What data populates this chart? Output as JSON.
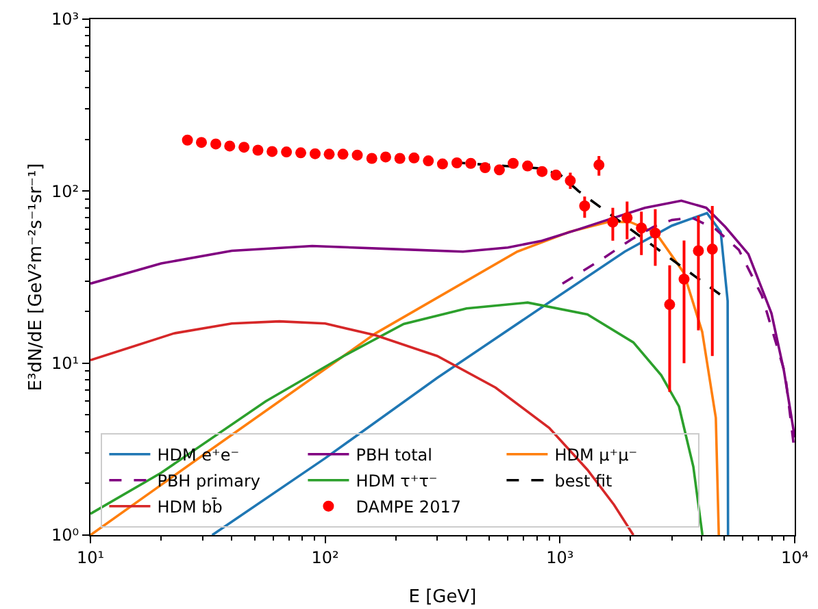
{
  "chart_data": {
    "type": "line",
    "xlabel": "E [GeV]",
    "ylabel": "E³dN/dE [GeV²m⁻²s⁻¹sr⁻¹]",
    "log": "xy",
    "legend": "bottom left",
    "grid": false,
    "xlim": [
      10,
      10000
    ],
    "ylim": [
      1,
      1000
    ],
    "xticks": [
      {
        "value": 10,
        "label": "10¹"
      },
      {
        "value": 20,
        "label": null
      },
      {
        "value": 30,
        "label": null
      },
      {
        "value": 40,
        "label": null
      },
      {
        "value": 50,
        "label": null
      },
      {
        "value": 60,
        "label": null
      },
      {
        "value": 70,
        "label": null
      },
      {
        "value": 80,
        "label": null
      },
      {
        "value": 90,
        "label": null
      },
      {
        "value": 100,
        "label": "10²"
      },
      {
        "value": 200,
        "label": null
      },
      {
        "value": 300,
        "label": null
      },
      {
        "value": 400,
        "label": null
      },
      {
        "value": 500,
        "label": null
      },
      {
        "value": 600,
        "label": null
      },
      {
        "value": 700,
        "label": null
      },
      {
        "value": 800,
        "label": null
      },
      {
        "value": 900,
        "label": null
      },
      {
        "value": 1000,
        "label": "10³"
      },
      {
        "value": 2000,
        "label": null
      },
      {
        "value": 3000,
        "label": null
      },
      {
        "value": 4000,
        "label": null
      },
      {
        "value": 5000,
        "label": null
      },
      {
        "value": 6000,
        "label": null
      },
      {
        "value": 7000,
        "label": null
      },
      {
        "value": 8000,
        "label": null
      },
      {
        "value": 9000,
        "label": null
      },
      {
        "value": 10000,
        "label": "10⁴"
      }
    ],
    "yticks": [
      {
        "value": 1,
        "label": "10⁰"
      },
      {
        "value": 2,
        "label": null
      },
      {
        "value": 3,
        "label": null
      },
      {
        "value": 4,
        "label": null
      },
      {
        "value": 5,
        "label": null
      },
      {
        "value": 6,
        "label": null
      },
      {
        "value": 7,
        "label": null
      },
      {
        "value": 8,
        "label": null
      },
      {
        "value": 9,
        "label": null
      },
      {
        "value": 10,
        "label": "10¹"
      },
      {
        "value": 20,
        "label": null
      },
      {
        "value": 30,
        "label": null
      },
      {
        "value": 40,
        "label": null
      },
      {
        "value": 50,
        "label": null
      },
      {
        "value": 60,
        "label": null
      },
      {
        "value": 70,
        "label": null
      },
      {
        "value": 80,
        "label": null
      },
      {
        "value": 90,
        "label": null
      },
      {
        "value": 100,
        "label": "10²"
      },
      {
        "value": 200,
        "label": null
      },
      {
        "value": 300,
        "label": null
      },
      {
        "value": 400,
        "label": null
      },
      {
        "value": 500,
        "label": null
      },
      {
        "value": 600,
        "label": null
      },
      {
        "value": 700,
        "label": null
      },
      {
        "value": 800,
        "label": null
      },
      {
        "value": 900,
        "label": null
      },
      {
        "value": 1000,
        "label": "10³"
      }
    ],
    "series": [
      {
        "name": "HDM e⁺e⁻",
        "line_style": "solid",
        "marker": "none",
        "color": "#1f77b4",
        "x": [
          33,
          100,
          300,
          914,
          1888,
          3000,
          4230,
          4840,
          5180,
          5200
        ],
        "values": [
          1,
          2.8,
          8.2,
          22.9,
          44.5,
          63,
          74.5,
          58,
          23,
          1
        ]
      },
      {
        "name": "HDM μ⁺μ⁻",
        "line_style": "solid",
        "marker": "none",
        "color": "#ff7f0e",
        "x": [
          10,
          30,
          164,
          658,
          1100,
          1630,
          2000,
          2566,
          3366,
          4036,
          4613,
          4750
        ],
        "values": [
          1,
          2.9,
          14.9,
          44.5,
          58,
          66.5,
          66,
          57,
          33.6,
          15.2,
          4.8,
          1
        ]
      },
      {
        "name": "HDM τ⁺τ⁻",
        "line_style": "solid",
        "marker": "none",
        "color": "#2ca02c",
        "x": [
          10,
          20,
          55.8,
          120,
          216,
          400,
          728,
          1309,
          2055,
          2700,
          3214,
          3700,
          4045
        ],
        "values": [
          1.33,
          2.3,
          6,
          11,
          16.9,
          20.8,
          22.5,
          19.2,
          13.2,
          8.5,
          5.6,
          2.5,
          1
        ]
      },
      {
        "name": "HDM bb̄",
        "line_style": "solid",
        "marker": "none",
        "color": "#d62728",
        "x": [
          10,
          22.7,
          40,
          63.8,
          100,
          164,
          300,
          532,
          900,
          1309,
          1700,
          2055
        ],
        "values": [
          10.4,
          14.9,
          17,
          17.5,
          17,
          14.5,
          11,
          7.2,
          4.2,
          2.4,
          1.5,
          1
        ]
      },
      {
        "name": "PBH total",
        "line_style": "solid",
        "marker": "none",
        "color": "#800080",
        "x": [
          10,
          20,
          40,
          88,
          200,
          386,
          600,
          836,
          1200,
          1641,
          2300,
          3290,
          4200,
          5060,
          6350,
          7960,
          9000,
          10000
        ],
        "values": [
          29,
          38,
          45,
          48,
          46,
          44.5,
          47,
          51.4,
          60,
          69,
          80,
          88,
          80,
          62,
          43,
          19.5,
          9,
          3.7
        ]
      },
      {
        "name": "PBH primary",
        "line_style": "dashed",
        "marker": "none",
        "color": "#800080",
        "x": [
          1025,
          1500,
          2000,
          2500,
          3000,
          3657,
          4613,
          5780,
          7245,
          9100,
          10000
        ],
        "values": [
          29,
          40,
          52,
          62,
          68,
          70,
          60,
          45.6,
          24.7,
          8.7,
          3
        ]
      },
      {
        "name": "best fit",
        "line_style": "dashed",
        "marker": "none",
        "color": "#000000",
        "x": [
          350,
          500,
          800,
          1000,
          1200,
          1500,
          2000,
          3000,
          4940
        ],
        "values": [
          147,
          142,
          136,
          125,
          100,
          80,
          60,
          40,
          24.4
        ]
      },
      {
        "name": "DAMPE 2017",
        "type": "scatter",
        "marker": "circle",
        "color": "#ff0000",
        "x": [
          25.9,
          29.7,
          34.2,
          39.2,
          45.1,
          51.7,
          59.4,
          68.4,
          78.7,
          90.6,
          104,
          119,
          137,
          158,
          181,
          208,
          239,
          275,
          316,
          364,
          417,
          480,
          552,
          632,
          728,
          839,
          962,
          1107,
          1274,
          1466,
          1679,
          1932,
          2223,
          2547,
          2933,
          3378,
          3888,
          4457
        ],
        "values": [
          198,
          192,
          188,
          183,
          180,
          173,
          170,
          169,
          167,
          165,
          164,
          164,
          162,
          155,
          158,
          155,
          156,
          150,
          144,
          146,
          145,
          137,
          133,
          145,
          140,
          130,
          124,
          115,
          82,
          142,
          66,
          70,
          61,
          57,
          21.9,
          30.8,
          45,
          46
        ],
        "errors": [
          null,
          null,
          null,
          null,
          null,
          null,
          null,
          null,
          null,
          null,
          null,
          null,
          null,
          null,
          null,
          null,
          null,
          null,
          null,
          null,
          null,
          null,
          null,
          null,
          null,
          null,
          [
            116,
            132
          ],
          [
            103,
            128
          ],
          [
            70,
            93
          ],
          [
            123,
            160
          ],
          [
            51.5,
            80
          ],
          [
            52.5,
            87
          ],
          [
            42.5,
            76
          ],
          [
            36.8,
            78.5
          ],
          [
            6.8,
            37
          ],
          [
            10,
            51.6
          ],
          [
            15.5,
            72
          ],
          [
            11,
            82
          ]
        ]
      }
    ]
  }
}
